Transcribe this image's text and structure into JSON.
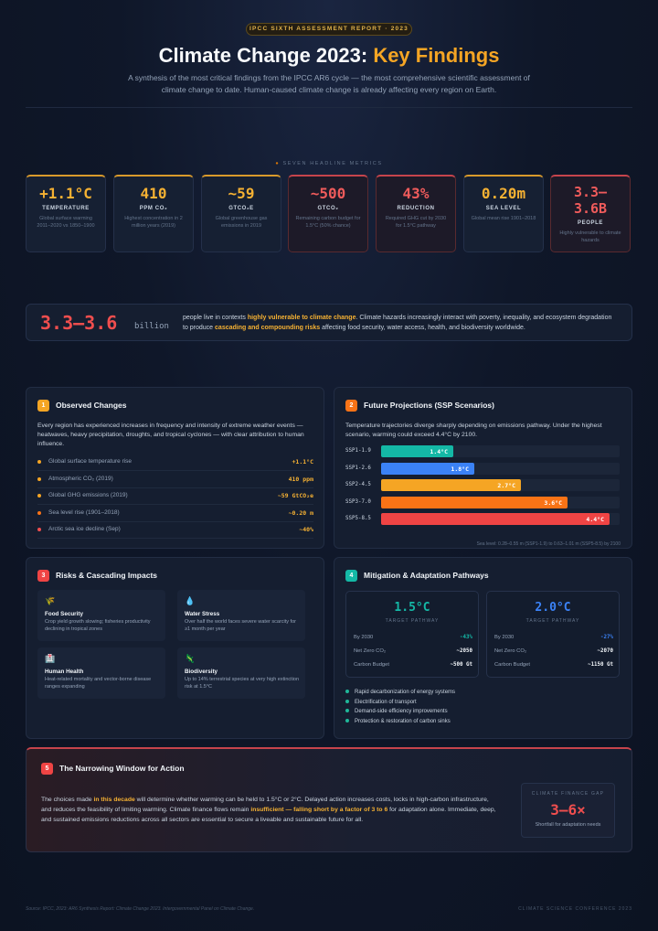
{
  "header": {
    "badge": "IPCC SIXTH ASSESSMENT REPORT · 2023",
    "title_main": "Climate Change 2023: ",
    "title_accent": "Key Findings",
    "subtitle": "A synthesis of the most critical findings from the IPCC AR6 cycle — the most comprehensive scientific assessment of climate change to date. Human-caused climate change is already affecting every region on Earth."
  },
  "metrics_label": "SEVEN HEADLINE METRICS",
  "metrics": [
    {
      "value": "+1.1°C",
      "label": "TEMPERATURE",
      "desc": "Global surface warming 2011–2020 vs 1850–1900",
      "tone": "gold"
    },
    {
      "value": "410",
      "label": "PPM CO₂",
      "desc": "Highest concentration in 2 million years (2019)",
      "tone": "gold"
    },
    {
      "value": "~59",
      "label": "GTCO₂E",
      "desc": "Global greenhouse gas emissions in 2019",
      "tone": "gold"
    },
    {
      "value": "~500",
      "label": "GTCO₂",
      "desc": "Remaining carbon budget for 1.5°C (50% chance)",
      "tone": "red"
    },
    {
      "value": "43%",
      "label": "REDUCTION",
      "desc": "Required GHG cut by 2030 for 1.5°C pathway",
      "tone": "red"
    },
    {
      "value": "0.20m",
      "label": "SEA LEVEL",
      "desc": "Global mean rise 1901–2018",
      "tone": "gold"
    },
    {
      "value": "3.3–3.6B",
      "label": "PEOPLE",
      "desc": "Highly vulnerable to climate hazards",
      "tone": "red"
    }
  ],
  "banner": {
    "big": "3.3–3.6",
    "unit": "billion",
    "text_1": "people live in contexts ",
    "hl_1": "highly vulnerable to climate change",
    "text_2": ". Climate hazards increasingly interact with poverty, inequality, and ecosystem degradation to produce ",
    "hl_2": "cascading and compounding risks",
    "text_3": " affecting food security, water access, health, and biodiversity worldwide."
  },
  "observed": {
    "num": "1",
    "title": "Observed Changes",
    "text": "Every region has experienced increases in frequency and intensity of extreme weather events — heatwaves, heavy precipitation, droughts, and tropical cyclones — with clear attribution to human influence.",
    "rows": [
      {
        "label": "Global surface temperature rise",
        "value": "+1.1°C",
        "color": "#f5a524"
      },
      {
        "label": "Atmospheric CO₂ (2019)",
        "value": "410 ppm",
        "color": "#f5a524"
      },
      {
        "label": "Global GHG emissions (2019)",
        "value": "~59 GtCO₂e",
        "color": "#f5a524"
      },
      {
        "label": "Sea level rise (1901–2018)",
        "value": "~0.20 m",
        "color": "#f97316"
      },
      {
        "label": "Arctic sea ice decline (Sep)",
        "value": "~40%",
        "color": "#ef4e4e"
      }
    ]
  },
  "projections": {
    "num": "2",
    "title": "Future Projections (SSP Scenarios)",
    "text": "Temperature trajectories diverge sharply depending on emissions pathway. Under the highest scenario, warming could exceed 4.4°C by 2100.",
    "note": "Sea level: 0.28–0.55 m (SSP1-1.9) to 0.63–1.01 m (SSP5-8.5) by 2100",
    "max": 4.6,
    "bars": [
      {
        "label": "SSP1-1.9",
        "value": 1.4,
        "text": "1.4°C",
        "color": "#14b8a6"
      },
      {
        "label": "SSP1-2.6",
        "value": 1.8,
        "text": "1.8°C",
        "color": "#3b82f6"
      },
      {
        "label": "SSP2-4.5",
        "value": 2.7,
        "text": "2.7°C",
        "color": "#f5a524"
      },
      {
        "label": "SSP3-7.0",
        "value": 3.6,
        "text": "3.6°C",
        "color": "#f97316"
      },
      {
        "label": "SSP5-8.5",
        "value": 4.4,
        "text": "4.4°C",
        "color": "#ef4444"
      }
    ]
  },
  "risks": {
    "num": "3",
    "title": "Risks & Cascading Impacts",
    "cards": [
      {
        "icon": "🌾",
        "title": "Food Security",
        "desc": "Crop yield growth slowing; fisheries productivity declining in tropical zones"
      },
      {
        "icon": "💧",
        "title": "Water Stress",
        "desc": "Over half the world faces severe water scarcity for ≥1 month per year"
      },
      {
        "icon": "🏥",
        "title": "Human Health",
        "desc": "Heat-related mortality and vector-borne disease ranges expanding"
      },
      {
        "icon": "🦎",
        "title": "Biodiversity",
        "desc": "Up to 14% terrestrial species at very high extinction risk at 1.5°C"
      }
    ]
  },
  "mitigation": {
    "num": "4",
    "title": "Mitigation & Adaptation Pathways",
    "targets": [
      {
        "value": "1.5°C",
        "label": "TARGET PATHWAY",
        "rows": [
          {
            "k": "By 2030",
            "v": "-43%"
          },
          {
            "k": "Net Zero CO₂",
            "v": "~2050"
          },
          {
            "k": "Carbon Budget",
            "v": "~500 Gt"
          }
        ]
      },
      {
        "value": "2.0°C",
        "label": "TARGET PATHWAY",
        "rows": [
          {
            "k": "By 2030",
            "v": "-27%"
          },
          {
            "k": "Net Zero CO₂",
            "v": "~2070"
          },
          {
            "k": "Carbon Budget",
            "v": "~1150 Gt"
          }
        ]
      }
    ],
    "items": [
      "Rapid decarbonization of energy systems",
      "Electrification of transport",
      "Demand-side efficiency improvements",
      "Protection & restoration of carbon sinks"
    ]
  },
  "window": {
    "num": "5",
    "title": "The Narrowing Window for Action",
    "t1": "The choices made ",
    "h1": "in this decade",
    "t2": " will determine whether warming can be held to 1.5°C or 2°C. Delayed action increases costs, locks in high-carbon infrastructure, and reduces the feasibility of limiting warming. Climate finance flows remain ",
    "h2": "insufficient — falling short by a factor of 3 to 6",
    "t3": " for adaptation alone. Immediate, deep, and sustained emissions reductions across all sectors are essential to secure a liveable and sustainable future for all.",
    "gap_label": "CLIMATE FINANCE GAP",
    "gap_value": "3–6×",
    "gap_desc": "Shortfall for adaptation needs"
  },
  "footer": {
    "source": "Source: IPCC, 2023: AR6 Synthesis Report: Climate Change 2023. Intergovernmental Panel on Climate Change.",
    "right": "CLIMATE SCIENCE CONFERENCE 2023"
  },
  "colors": {
    "gold": "#f5a524",
    "red": "#ef4e4e",
    "teal": "#14b8a6",
    "blue": "#3b82f6",
    "orange": "#f97316"
  }
}
